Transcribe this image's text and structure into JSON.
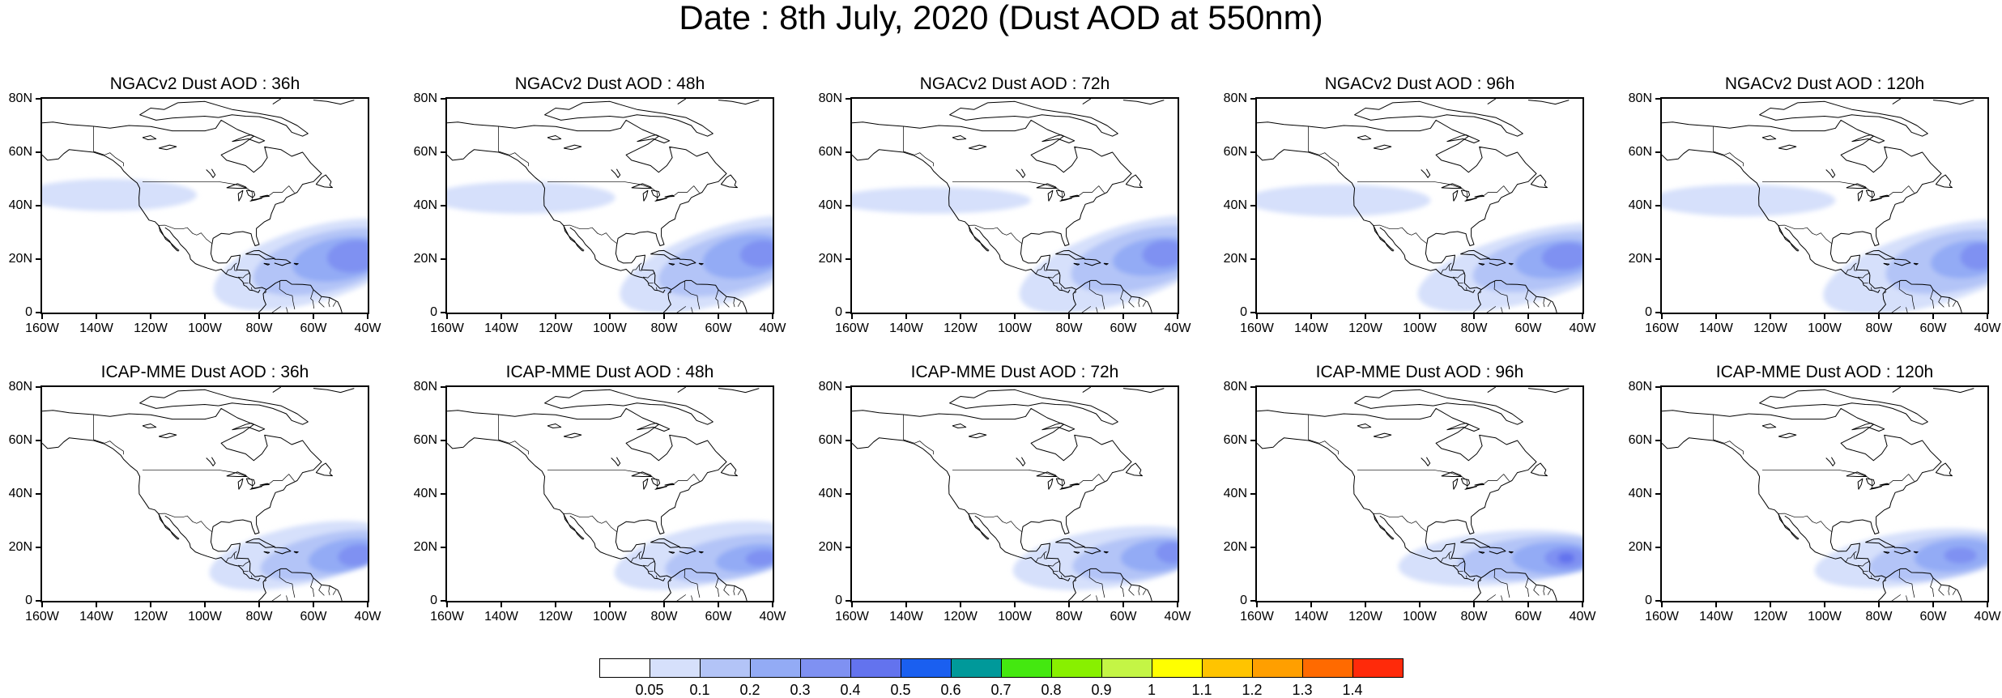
{
  "title": "Date : 8th July, 2020 (Dust AOD at 550nm)",
  "axis": {
    "lat_labels": [
      "80N",
      "60N",
      "40N",
      "20N",
      "0"
    ],
    "lat_values": [
      80,
      60,
      40,
      20,
      0
    ],
    "lon_labels": [
      "160W",
      "140W",
      "120W",
      "100W",
      "80W",
      "60W",
      "40W"
    ],
    "lon_values": [
      -160,
      -140,
      -120,
      -100,
      -80,
      -60,
      -40
    ],
    "lat_range": [
      0,
      80
    ],
    "lon_range": [
      -160,
      -40
    ]
  },
  "panels": [
    {
      "title": "NGACv2 Dust AOD : 36h",
      "model": "NGACv2",
      "lead": 36
    },
    {
      "title": "NGACv2 Dust AOD : 48h",
      "model": "NGACv2",
      "lead": 48
    },
    {
      "title": "NGACv2 Dust AOD : 72h",
      "model": "NGACv2",
      "lead": 72
    },
    {
      "title": "NGACv2 Dust AOD : 96h",
      "model": "NGACv2",
      "lead": 96
    },
    {
      "title": "NGACv2 Dust AOD : 120h",
      "model": "NGACv2",
      "lead": 120
    },
    {
      "title": "ICAP-MME Dust AOD : 36h",
      "model": "ICAP-MME",
      "lead": 36
    },
    {
      "title": "ICAP-MME Dust AOD : 48h",
      "model": "ICAP-MME",
      "lead": 48
    },
    {
      "title": "ICAP-MME Dust AOD : 72h",
      "model": "ICAP-MME",
      "lead": 72
    },
    {
      "title": "ICAP-MME Dust AOD : 96h",
      "model": "ICAP-MME",
      "lead": 96
    },
    {
      "title": "ICAP-MME Dust AOD : 120h",
      "model": "ICAP-MME",
      "lead": 120
    }
  ],
  "colorbar": {
    "labels": [
      "0.05",
      "0.1",
      "0.2",
      "0.3",
      "0.4",
      "0.5",
      "0.6",
      "0.7",
      "0.8",
      "0.9",
      "1",
      "1.1",
      "1.2",
      "1.3",
      "1.4"
    ],
    "colors": [
      "#ffffff",
      "#d6e0fb",
      "#b3c4f7",
      "#93abf5",
      "#7f91f2",
      "#6373ee",
      "#1a5ff0",
      "#00999a",
      "#44e810",
      "#88f000",
      "#c4f545",
      "#ffff00",
      "#ffc400",
      "#ff9f00",
      "#ff6a00",
      "#ff2a0a"
    ]
  }
}
